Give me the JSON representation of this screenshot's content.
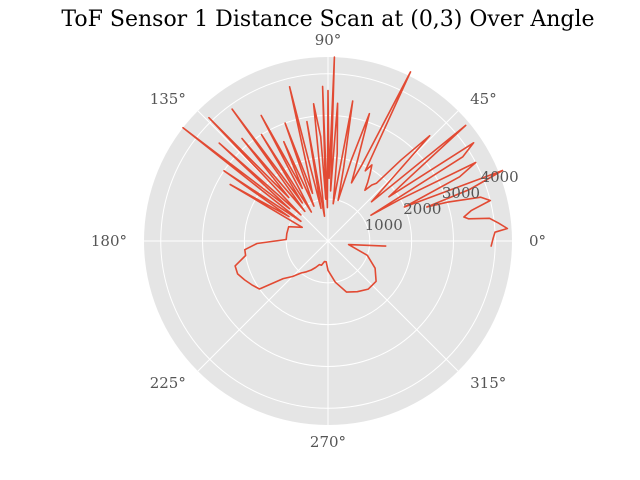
{
  "chart_data": {
    "type": "line",
    "projection": "polar",
    "title": "ToF Sensor 1 Distance Scan at (0,3) Over Angle",
    "angle_unit": "deg",
    "theta_ticks": [
      "0°",
      "45°",
      "90°",
      "135°",
      "180°",
      "225°",
      "270°",
      "315°"
    ],
    "theta_tick_values": [
      0,
      45,
      90,
      135,
      180,
      225,
      270,
      315
    ],
    "r_ticks": [
      "1000",
      "2000",
      "3000",
      "4000"
    ],
    "r_tick_values": [
      1000,
      2000,
      3000,
      4000
    ],
    "r_lim": [
      0,
      4400
    ],
    "r_label_angle": 22.5,
    "grid": true,
    "background": "#e5e5e5",
    "colors": {
      "line": "#e24a33",
      "grid": "#ffffff"
    },
    "series": [
      {
        "theta": [
          -2,
          1,
          3,
          4,
          6,
          8,
          9,
          10,
          12,
          14,
          16,
          18,
          19,
          20,
          22,
          24,
          26,
          28,
          30,
          31,
          32,
          34,
          36,
          38,
          40,
          42,
          44,
          46,
          48,
          50,
          52,
          54,
          56,
          58,
          60,
          62,
          64,
          66,
          68,
          70,
          72,
          74,
          76,
          78,
          80,
          82,
          84,
          86,
          87,
          88,
          89,
          90,
          91,
          92,
          93,
          94,
          96,
          98,
          100,
          102,
          104,
          106,
          108,
          110,
          112,
          114,
          116,
          118,
          120,
          122,
          124,
          126,
          128,
          130,
          132,
          134,
          136,
          138,
          140,
          142,
          144,
          146,
          148,
          150,
          152,
          160,
          170,
          178,
          182,
          186,
          190,
          195,
          200,
          205,
          210,
          215,
          220,
          225,
          230,
          235,
          240,
          245,
          250,
          255,
          260,
          265,
          270,
          280,
          290,
          300,
          310,
          320,
          330,
          340,
          350,
          355
        ],
        "r": [
          3900,
          3950,
          4000,
          4300,
          4100,
          3900,
          3400,
          3300,
          3500,
          4000,
          3800,
          3000,
          2500,
          3600,
          4500,
          2000,
          3500,
          4000,
          2000,
          1200,
          3800,
          4200,
          1800,
          2500,
          4300,
          1400,
          2000,
          3500,
          2600,
          1800,
          1700,
          1500,
          1700,
          1900,
          2100,
          1900,
          4500,
          2000,
          1500,
          2100,
          3200,
          2000,
          1000,
          1800,
          3400,
          900,
          2100,
          3300,
          1200,
          4400,
          1500,
          3600,
          800,
          3700,
          1000,
          2500,
          3300,
          600,
          2900,
          800,
          3800,
          1800,
          1200,
          3000,
          900,
          2600,
          1400,
          3400,
          800,
          3000,
          1100,
          3900,
          900,
          3200,
          1400,
          4100,
          900,
          3500,
          1200,
          4400,
          800,
          3000,
          1100,
          2700,
          700,
          1000,
          1000,
          1000,
          1700,
          2000,
          2000,
          2300,
          2300,
          2200,
          2100,
          2000,
          1400,
          1200,
          1000,
          900,
          800,
          700,
          600,
          600,
          500,
          500,
          700,
          1000,
          1300,
          1400,
          1500,
          1500,
          1300,
          1000,
          500,
          1400
        ]
      }
    ]
  }
}
